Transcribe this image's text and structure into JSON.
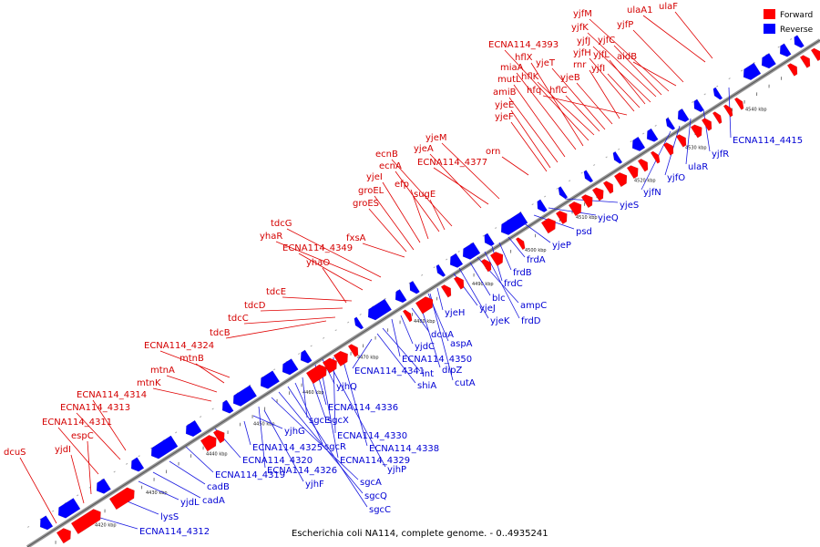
{
  "caption": "Escherichia coli NA114, complete genome. - 0..4935241",
  "legend": [
    {
      "label": "Forward",
      "color": "#ff0000"
    },
    {
      "label": "Reverse",
      "color": "#0000ff"
    }
  ],
  "colors": {
    "forward": "#ff0000",
    "reverse": "#0000ff",
    "forward_label": "#d40000",
    "reverse_label": "#0000d4",
    "backbone": "#999999"
  },
  "kbp_ticks": [
    "4420 kbp",
    "4430 kbp",
    "4440 kbp",
    "4450 kbp",
    "4460 kbp",
    "4470 kbp",
    "4480 kbp",
    "4490 kbp",
    "4500 kbp",
    "4510 kbp",
    "4520 kbp",
    "4530 kbp",
    "4540 kbp"
  ],
  "forward_genes": [
    "dcuS",
    "yjdI",
    "espC",
    "ECNA114_4311",
    "ECNA114_4313",
    "ECNA114_4314",
    "mtnK",
    "mtnA",
    "mtnB",
    "ECNA114_4324",
    "tdcB",
    "tdcC",
    "tdcD",
    "tdcE",
    "yhaO",
    "ECNA114_4349",
    "yhaR",
    "tdcG",
    "fxsA",
    "groES",
    "groEL",
    "yjeI",
    "efp",
    "ecnA",
    "sugE",
    "ecnB",
    "ECNA114_4377",
    "yjeA",
    "yjeM",
    "orn",
    "yjeF",
    "yjeE",
    "amiB",
    "mutL",
    "miaA",
    "hflX",
    "ECNA114_4393",
    "hflK",
    "hflC",
    "yjeT",
    "yjeB",
    "rnr",
    "hfq",
    "yjfH",
    "yjfI",
    "yjfL",
    "yjfJ",
    "yjfK",
    "yjfC",
    "yjfM",
    "aidB",
    "yjfP",
    "ulaA1",
    "ulaF"
  ],
  "reverse_genes": [
    "ECNA114_4312",
    "lysS",
    "yjdL",
    "cadA",
    "cadB",
    "ECNA114_4319",
    "ECNA114_4320",
    "ECNA114_4325",
    "yjhF",
    "yjhG",
    "ECNA114_4326",
    "sgcA",
    "sgcQ",
    "sgcC",
    "sgcR",
    "sgcE",
    "sgcX",
    "ECNA114_4329",
    "yjhP",
    "ECNA114_4330",
    "ECNA114_4338",
    "ECNA114_4336",
    "yjhQ",
    "shiA",
    "int",
    "ECNA114_4341",
    "ECNA114_4350",
    "yjdC",
    "dipZ",
    "cutA",
    "dcuA",
    "aspA",
    "yjeH",
    "yjeJ",
    "yjeK",
    "blc",
    "ampC",
    "frdD",
    "frdC",
    "frdB",
    "frdA",
    "yjeP",
    "psd",
    "yjeQ",
    "yjeS",
    "yjfN",
    "yjfO",
    "ulaR",
    "yjfR",
    "ECNA114_4415"
  ]
}
